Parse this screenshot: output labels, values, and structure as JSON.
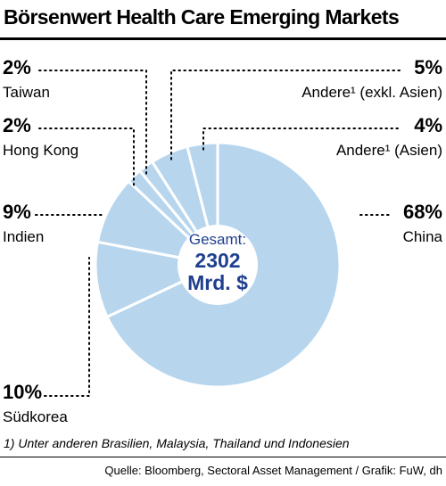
{
  "title": "Börsenwert Health Care Emerging Markets",
  "footnote": "1) Unter anderen Brasilien, Malaysia, Thailand und Indonesien",
  "source": "Quelle: Bloomberg, Sectoral Asset Management / Grafik: FuW, dh",
  "colors": {
    "slice": "#b7d6ee",
    "center_text": "#1f3f8f"
  },
  "chart_data": {
    "type": "pie",
    "title": "Börsenwert Health Care Emerging Markets",
    "center_label": {
      "line1": "Gesamt:",
      "line2": "2302",
      "line3": "Mrd. $"
    },
    "slices": [
      {
        "label": "China",
        "value": 68,
        "pct_label": "68%"
      },
      {
        "label": "Südkorea",
        "value": 10,
        "pct_label": "10%"
      },
      {
        "label": "Indien",
        "value": 9,
        "pct_label": "9%"
      },
      {
        "label": "Hong Kong",
        "value": 2,
        "pct_label": "2%"
      },
      {
        "label": "Taiwan",
        "value": 2,
        "pct_label": "2%"
      },
      {
        "label": "Andere¹ (exkl. Asien)",
        "value": 5,
        "pct_label": "5%"
      },
      {
        "label": "Andere¹ (Asien)",
        "value": 4,
        "pct_label": "4%"
      }
    ]
  }
}
